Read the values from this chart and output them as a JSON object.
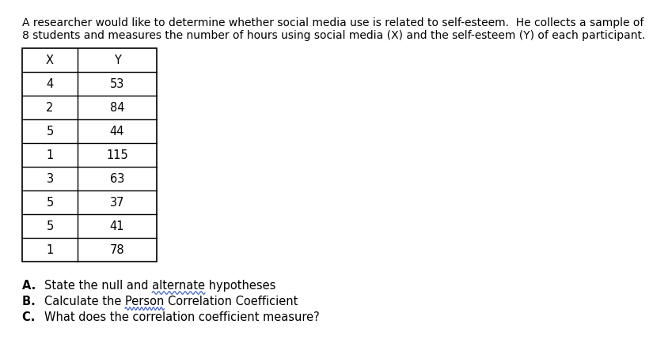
{
  "intro_line1": "A researcher would like to determine whether social media use is related to self-esteem.  He collects a sample of",
  "intro_line2": "8 students and measures the number of hours using social media (X) and the self-esteem (Y) of each participant.",
  "col_headers": [
    "X",
    "Y"
  ],
  "rows": [
    [
      4,
      53
    ],
    [
      2,
      84
    ],
    [
      5,
      44
    ],
    [
      1,
      115
    ],
    [
      3,
      63
    ],
    [
      5,
      37
    ],
    [
      5,
      41
    ],
    [
      1,
      78
    ]
  ],
  "questions": [
    [
      "A.",
      "State the null and alternate hypotheses",
      "alternate"
    ],
    [
      "B.",
      "Calculate the Person Correlation Coefficient",
      "Person"
    ],
    [
      "C.",
      "What does the correlation coefficient measure?",
      ""
    ]
  ],
  "bg_color": "#ffffff",
  "text_color": "#000000",
  "table_border_color": "#000000",
  "font_size_intro": 10.0,
  "font_size_table": 10.5,
  "font_size_questions": 10.5,
  "wavy_color": "#4466cc"
}
